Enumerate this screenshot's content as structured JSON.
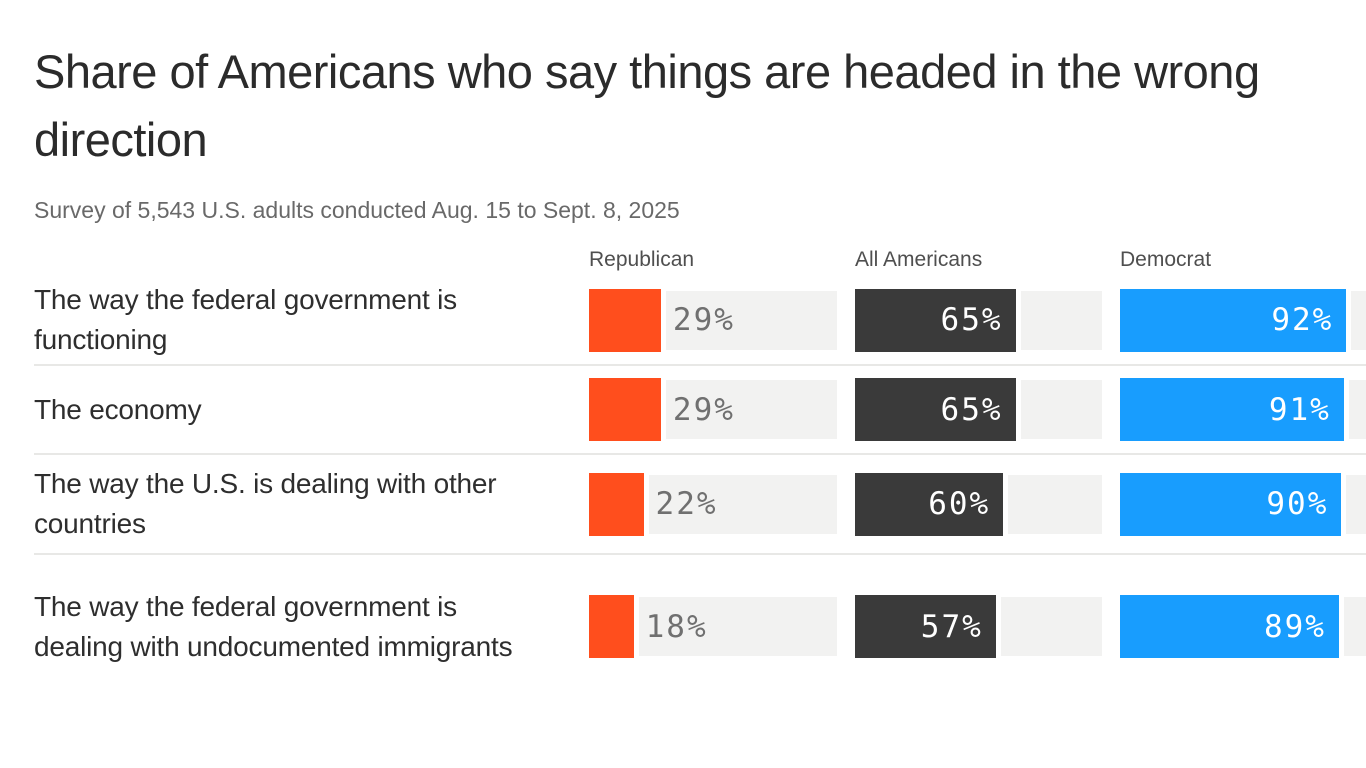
{
  "header": {
    "title": "Share of Americans who say things are headed in the wrong direction",
    "subtitle": "Survey of 5,543 U.S. adults conducted Aug. 15 to Sept. 8, 2025"
  },
  "columns": [
    {
      "label": "Republican",
      "color": "#ff4e1d",
      "value_label_position": "outside"
    },
    {
      "label": "All Americans",
      "color": "#3a3a3a",
      "value_label_position": "inside"
    },
    {
      "label": "Democrat",
      "color": "#189dfe",
      "value_label_position": "inside"
    }
  ],
  "chart_data": {
    "type": "bar",
    "orientation": "horizontal",
    "unit": "%",
    "title": "Share of Americans who say things are headed in the wrong direction",
    "subtitle": "Survey of 5,543 U.S. adults conducted Aug. 15 to Sept. 8, 2025",
    "xlim": [
      0,
      100
    ],
    "grid": false,
    "legend_position": "top-as-column-headers",
    "categories": [
      "The way the federal government is functioning",
      "The economy",
      "The way the U.S. is dealing with other countries",
      "The way the federal government is dealing with undocumented immigrants"
    ],
    "series": [
      {
        "name": "Republican",
        "values": [
          29,
          29,
          22,
          18
        ]
      },
      {
        "name": "All Americans",
        "values": [
          65,
          65,
          60,
          57
        ]
      },
      {
        "name": "Democrat",
        "values": [
          92,
          91,
          90,
          89
        ]
      }
    ]
  },
  "colors": {
    "republican_bar": "#ff4e1d",
    "all_americans_bar": "#3a3a3a",
    "democrat_bar": "#189dfe",
    "bar_track": "#f2f2f1",
    "row_divider": "#e8e8e6",
    "title_text": "#2b2b2b",
    "subtitle_text": "#696969",
    "column_header_text": "#4f4f4f",
    "outside_value_text": "#707070",
    "inside_value_text": "#ffffff"
  }
}
